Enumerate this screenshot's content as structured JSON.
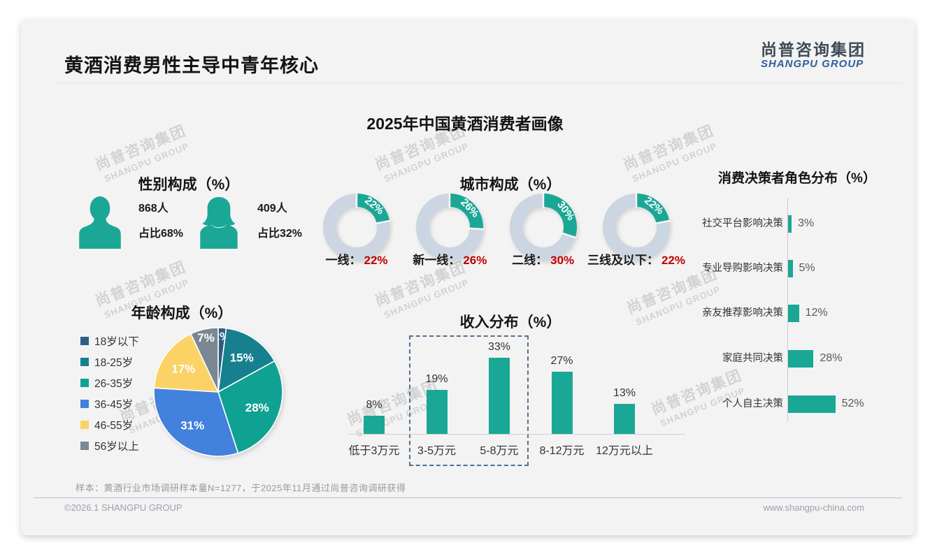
{
  "slide": {
    "header_title": "黄酒消费男性主导中青年核心",
    "logo_cn": "尚普咨询集团",
    "logo_en": "SHANGPU GROUP",
    "main_title": "2025年中国黄酒消费者画像",
    "watermark_cn": "尚普咨询集团",
    "watermark_en": "SHANGPU GROUP",
    "footnote": "样本：黄酒行业市场调研样本量N=1277，于2025年11月通过尚普咨询调研获得",
    "footer_left": "©2026.1 SHANGPU GROUP",
    "footer_right": "www.shangpu-china.com"
  },
  "colors": {
    "teal": "#1BA796",
    "donut_track": "#CCD5E2",
    "value_red": "#C00000",
    "dashed_box": "#4D7190"
  },
  "chart_data": [
    {
      "type": "icon-stat",
      "title": "性别构成（%）",
      "items": [
        {
          "icon": "male",
          "count": "868人",
          "share": "占比68%"
        },
        {
          "icon": "female",
          "count": "409人",
          "share": "占比32%"
        }
      ]
    },
    {
      "type": "pie",
      "title": "年龄构成（%）",
      "categories": [
        "18岁以下",
        "18-25岁",
        "26-35岁",
        "36-45岁",
        "46-55岁",
        "56岁以上"
      ],
      "values": [
        2,
        15,
        28,
        31,
        17,
        7
      ],
      "data_labels": [
        "2%",
        "15%",
        "28%",
        "31%",
        "17%",
        "7%"
      ],
      "colors": [
        "#2E5E80",
        "#17808E",
        "#0FA292",
        "#4281DC",
        "#FBD265",
        "#7B8793"
      ],
      "legend_position": "left"
    },
    {
      "type": "donut-set",
      "title": "城市构成（%）",
      "items": [
        {
          "label": "一线：",
          "value": 22,
          "value_label": "22%",
          "slice_label": "22%"
        },
        {
          "label": "新一线：",
          "value": 26,
          "value_label": "26%",
          "slice_label": "26%"
        },
        {
          "label": "二线：",
          "value": 30,
          "value_label": "30%",
          "slice_label": "30%"
        },
        {
          "label": "三线及以下：",
          "value": 22,
          "value_label": "22%",
          "slice_label": "22%"
        }
      ]
    },
    {
      "type": "bar",
      "title": "收入分布（%）",
      "categories": [
        "低于3万元",
        "3-5万元",
        "5-8万元",
        "8-12万元",
        "12万元以上"
      ],
      "values": [
        8,
        19,
        33,
        27,
        13
      ],
      "data_labels": [
        "8%",
        "19%",
        "33%",
        "27%",
        "13%"
      ],
      "highlight_categories": [
        "3-5万元",
        "5-8万元"
      ],
      "ylim": [
        0,
        40
      ]
    },
    {
      "type": "bar-horizontal",
      "title": "消费决策者角色分布（%）",
      "categories": [
        "社交平台影响决策",
        "专业导购影响决策",
        "亲友推荐影响决策",
        "家庭共同决策",
        "个人自主决策"
      ],
      "values": [
        3,
        5,
        12,
        28,
        52
      ],
      "data_labels": [
        "3%",
        "5%",
        "12%",
        "28%",
        "52%"
      ]
    }
  ]
}
